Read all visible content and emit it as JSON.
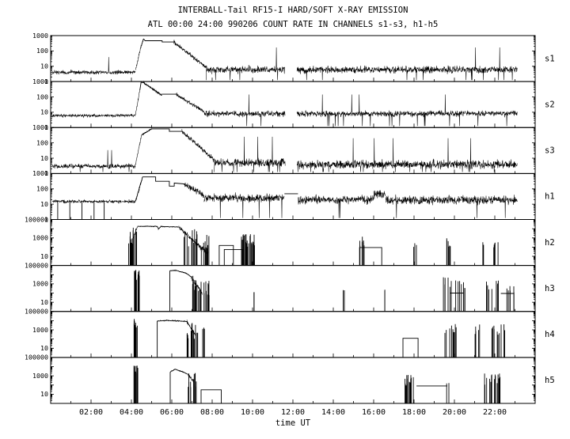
{
  "title": "INTERBALL-Tail RF15-I HARD/SOFT X-RAY EMISSION",
  "subtitle": "ATL 00:00 24:00 990206  COUNT RATE IN CHANNELS s1-s3, h1-h5",
  "xlabel": "time UT",
  "chart_data": {
    "type": "line",
    "title": "INTERBALL-Tail RF15-I HARD/SOFT X-RAY EMISSION",
    "subtitle": "ATL 00:00 24:00 990206  COUNT RATE IN CHANNELS s1-s3, h1-h5",
    "xlabel": "time UT",
    "x_range": [
      0,
      24
    ],
    "x_ticks": [
      {
        "hour": 2,
        "label": "02:00"
      },
      {
        "hour": 4,
        "label": "04:00"
      },
      {
        "hour": 6,
        "label": "06:00"
      },
      {
        "hour": 8,
        "label": "08:00"
      },
      {
        "hour": 10,
        "label": "10:00"
      },
      {
        "hour": 12,
        "label": "12:00"
      },
      {
        "hour": 14,
        "label": "14:00"
      },
      {
        "hour": 16,
        "label": "16:00"
      },
      {
        "hour": 18,
        "label": "18:00"
      },
      {
        "hour": 20,
        "label": "20:00"
      },
      {
        "hour": 22,
        "label": "22:00"
      }
    ],
    "panels": [
      {
        "label": "s1",
        "ymin": 1,
        "ymax": 1000,
        "ytick_labels": [
          "1000",
          "100",
          "10",
          "1"
        ],
        "segments": [
          {
            "type": "noise",
            "t0": 0.08,
            "t1": 4.2,
            "base": 4,
            "amp": 0.13,
            "dip_p": 0.004,
            "spike_p": 0.002
          },
          {
            "type": "ramp",
            "t0": 4.2,
            "t1": 4.45,
            "v0": 5,
            "v1": 150,
            "amp": 0.1
          },
          {
            "type": "ramp",
            "t0": 4.45,
            "t1": 4.6,
            "v0": 150,
            "v1": 620,
            "amp": 0.04
          },
          {
            "type": "line",
            "points": [
              [
                4.6,
                620
              ],
              [
                4.68,
                460
              ],
              [
                5.52,
                460
              ],
              [
                5.52,
                380
              ],
              [
                6.1,
                380
              ]
            ]
          },
          {
            "type": "ramp",
            "t0": 6.1,
            "t1": 7.7,
            "v0": 380,
            "v1": 8,
            "amp": 0.12
          },
          {
            "type": "noise",
            "t0": 7.7,
            "t1": 11.62,
            "base": 6,
            "amp": 0.22,
            "dip_p": 0.015,
            "spike_p": 0.004
          },
          {
            "type": "noise",
            "t0": 12.2,
            "t1": 23.12,
            "base": 6,
            "amp": 0.22,
            "dip_p": 0.018,
            "spike_p": 0.004
          }
        ]
      },
      {
        "label": "s2",
        "ymin": 1,
        "ymax": 1000,
        "ytick_labels": [
          "1000",
          "100",
          "10",
          "1"
        ],
        "segments": [
          {
            "type": "noise",
            "t0": 0.08,
            "t1": 4.2,
            "base": 6,
            "amp": 0.1,
            "dip_p": 0.003
          },
          {
            "type": "ramp",
            "t0": 4.2,
            "t1": 4.42,
            "v0": 7,
            "v1": 280,
            "amp": 0.08
          },
          {
            "type": "line",
            "points": [
              [
                4.42,
                280
              ],
              [
                4.48,
                900
              ],
              [
                4.6,
                850
              ]
            ]
          },
          {
            "type": "ramp",
            "t0": 4.6,
            "t1": 5.5,
            "v0": 850,
            "v1": 130,
            "amp": 0.05
          },
          {
            "type": "line",
            "points": [
              [
                5.5,
                150
              ],
              [
                6.2,
                150
              ]
            ]
          },
          {
            "type": "ramp",
            "t0": 6.2,
            "t1": 7.6,
            "v0": 150,
            "v1": 11,
            "amp": 0.12
          },
          {
            "type": "noise",
            "t0": 7.6,
            "t1": 11.62,
            "base": 8,
            "amp": 0.18,
            "dip_p": 0.012,
            "spike_p": 0.003
          },
          {
            "type": "noise",
            "t0": 12.2,
            "t1": 23.12,
            "base": 8,
            "amp": 0.18,
            "dip_p": 0.015,
            "spike_p": 0.003
          }
        ]
      },
      {
        "label": "s3",
        "ymin": 1,
        "ymax": 1000,
        "ytick_labels": [
          "1000",
          "100",
          "10",
          "1"
        ],
        "segments": [
          {
            "type": "noise",
            "t0": 0.08,
            "t1": 4.2,
            "base": 3,
            "amp": 0.14,
            "dip_p": 0.004,
            "spike_p": 0.002
          },
          {
            "type": "ramp",
            "t0": 4.2,
            "t1": 4.5,
            "v0": 3.5,
            "v1": 320,
            "amp": 0.09
          },
          {
            "type": "ramp",
            "t0": 4.5,
            "t1": 5.0,
            "v0": 320,
            "v1": 820,
            "amp": 0.03
          },
          {
            "type": "line",
            "points": [
              [
                5.0,
                820
              ],
              [
                5.88,
                820
              ],
              [
                5.88,
                560
              ],
              [
                6.5,
                560
              ]
            ]
          },
          {
            "type": "ramp",
            "t0": 6.5,
            "t1": 8.1,
            "v0": 560,
            "v1": 8,
            "amp": 0.15
          },
          {
            "type": "noise",
            "t0": 8.1,
            "t1": 11.62,
            "base": 5,
            "amp": 0.27,
            "dip_p": 0.02,
            "spike_p": 0.005
          },
          {
            "type": "noise",
            "t0": 12.2,
            "t1": 23.12,
            "base": 4,
            "amp": 0.27,
            "dip_p": 0.02,
            "spike_p": 0.005
          }
        ]
      },
      {
        "label": "h1",
        "ymin": 1,
        "ymax": 1000,
        "ytick_labels": [
          "1000",
          "100",
          "10",
          "1"
        ],
        "segments": [
          {
            "type": "noise",
            "t0": 0.08,
            "t1": 4.2,
            "base": 15,
            "amp": 0.1,
            "dip_p": 0.002
          },
          {
            "type": "vlines",
            "times": [
              0.35,
              0.95,
              1.55,
              2.15,
              2.65
            ],
            "v0": 1,
            "v1": 14
          },
          {
            "type": "ramp",
            "t0": 4.2,
            "t1": 4.55,
            "v0": 16,
            "v1": 550,
            "amp": 0.06
          },
          {
            "type": "line",
            "points": [
              [
                4.55,
                600
              ],
              [
                5.2,
                600
              ],
              [
                5.2,
                310
              ],
              [
                5.88,
                310
              ],
              [
                5.88,
                150
              ],
              [
                6.12,
                150
              ],
              [
                6.12,
                240
              ],
              [
                6.6,
                210
              ]
            ]
          },
          {
            "type": "ramp",
            "t0": 6.6,
            "t1": 7.6,
            "v0": 210,
            "v1": 40,
            "amp": 0.18
          },
          {
            "type": "noise",
            "t0": 7.6,
            "t1": 11.58,
            "base": 25,
            "amp": 0.26,
            "dip_p": 0.006
          },
          {
            "type": "line",
            "points": [
              [
                11.58,
                48
              ],
              [
                12.25,
                48
              ]
            ]
          },
          {
            "type": "noise",
            "t0": 12.25,
            "t1": 16.0,
            "base": 20,
            "amp": 0.26,
            "dip_p": 0.006
          },
          {
            "type": "noise",
            "t0": 16.0,
            "t1": 16.6,
            "base": 45,
            "amp": 0.3
          },
          {
            "type": "noise",
            "t0": 16.6,
            "t1": 23.12,
            "base": 18,
            "amp": 0.27,
            "dip_p": 0.007
          }
        ]
      },
      {
        "label": "h2",
        "ymin": 1,
        "ymax": 100000,
        "ytick_labels": [
          "100000",
          "1000",
          "10"
        ],
        "segments": [
          {
            "type": "spikes",
            "t0": 3.85,
            "t1": 4.08,
            "vmin": 200,
            "vmax": 6000,
            "n": 9
          },
          {
            "type": "spikes",
            "t0": 4.08,
            "t1": 4.3,
            "vmin": 2000,
            "vmax": 16000,
            "n": 7
          },
          {
            "type": "ramp",
            "t0": 4.08,
            "t1": 4.3,
            "v0": 800,
            "v1": 17000,
            "amp": 0.1
          },
          {
            "type": "line",
            "points": [
              [
                4.3,
                18000
              ],
              [
                5.28,
                18000
              ],
              [
                5.34,
                9000
              ],
              [
                5.46,
                17000
              ],
              [
                6.35,
                15000
              ]
            ],
            "amp": 0.04
          },
          {
            "type": "ramp",
            "t0": 6.35,
            "t1": 7.35,
            "v0": 15000,
            "v1": 120,
            "amp": 0.25
          },
          {
            "type": "spikes",
            "t0": 6.5,
            "t1": 7.85,
            "vmin": 40,
            "vmax": 9000,
            "n": 26
          },
          {
            "type": "ramp",
            "t0": 7.35,
            "t1": 7.8,
            "v0": 120,
            "v1": 25,
            "amp": 0.3
          },
          {
            "type": "step",
            "t0": 8.35,
            "t1": 9.05,
            "v": 150
          },
          {
            "type": "step",
            "t0": 8.6,
            "t1": 9.5,
            "v": 55
          },
          {
            "type": "spikes",
            "t0": 9.45,
            "t1": 10.1,
            "vmin": 60,
            "vmax": 2500,
            "n": 30
          },
          {
            "type": "spikes",
            "t0": 15.25,
            "t1": 15.55,
            "vmin": 100,
            "vmax": 1500,
            "n": 8
          },
          {
            "type": "step",
            "t0": 15.3,
            "t1": 16.4,
            "v": 90
          },
          {
            "type": "spikes",
            "t0": 17.95,
            "t1": 18.12,
            "vmin": 80,
            "vmax": 420,
            "n": 3
          },
          {
            "type": "spikes",
            "t0": 19.55,
            "t1": 20.0,
            "vmin": 100,
            "vmax": 1200,
            "n": 6
          },
          {
            "type": "spikes",
            "t0": 21.35,
            "t1": 21.5,
            "vmin": 80,
            "vmax": 420,
            "n": 2
          },
          {
            "type": "spikes",
            "t0": 21.9,
            "t1": 22.35,
            "vmin": 80,
            "vmax": 520,
            "n": 5
          }
        ]
      },
      {
        "label": "h3",
        "ymin": 1,
        "ymax": 100000,
        "ytick_labels": [
          "100000",
          "1000",
          "10"
        ],
        "segments": [
          {
            "type": "spikes",
            "t0": 4.12,
            "t1": 4.4,
            "vmin": 2000,
            "vmax": 60000,
            "n": 14
          },
          {
            "type": "vlines",
            "times": [
              5.9
            ],
            "v0": 1,
            "v1": 26000
          },
          {
            "type": "line",
            "points": [
              [
                5.9,
                26000
              ],
              [
                6.2,
                30000
              ],
              [
                6.7,
                15000
              ],
              [
                6.95,
                6000
              ]
            ],
            "amp": 0.04
          },
          {
            "type": "ramp",
            "t0": 6.95,
            "t1": 7.5,
            "v0": 6000,
            "v1": 100,
            "amp": 0.22
          },
          {
            "type": "spikes",
            "t0": 6.95,
            "t1": 7.85,
            "vmin": 50,
            "vmax": 8000,
            "n": 22
          },
          {
            "type": "spikes",
            "t0": 10.0,
            "t1": 10.08,
            "vmin": 120,
            "vmax": 260,
            "n": 2
          },
          {
            "type": "spikes",
            "t0": 14.45,
            "t1": 14.55,
            "vmin": 80,
            "vmax": 220,
            "n": 2
          },
          {
            "type": "spikes",
            "t0": 16.5,
            "t1": 16.6,
            "vmin": 100,
            "vmax": 320,
            "n": 2
          },
          {
            "type": "spikes",
            "t0": 19.45,
            "t1": 20.55,
            "vmin": 200,
            "vmax": 12000,
            "n": 14
          },
          {
            "type": "hline",
            "t0": 19.8,
            "t1": 20.45,
            "v": 100
          },
          {
            "type": "spikes",
            "t0": 21.5,
            "t1": 22.3,
            "vmin": 150,
            "vmax": 3200,
            "n": 10
          },
          {
            "type": "hline",
            "t0": 22.3,
            "t1": 22.95,
            "v": 90
          },
          {
            "type": "spikes",
            "t0": 22.55,
            "t1": 23.0,
            "vmin": 100,
            "vmax": 1600,
            "n": 6
          }
        ]
      },
      {
        "label": "h4",
        "ymin": 1,
        "ymax": 100000,
        "ytick_labels": [
          "100000",
          "1000",
          "10"
        ],
        "segments": [
          {
            "type": "spikes",
            "t0": 4.12,
            "t1": 4.3,
            "vmin": 1500,
            "vmax": 16000,
            "n": 10
          },
          {
            "type": "vlines",
            "times": [
              5.28
            ],
            "v0": 1,
            "v1": 9000
          },
          {
            "type": "line",
            "points": [
              [
                5.28,
                9000
              ],
              [
                5.7,
                10500
              ],
              [
                6.3,
                9500
              ],
              [
                6.75,
                8000
              ]
            ],
            "amp": 0.04
          },
          {
            "type": "ramp",
            "t0": 6.75,
            "t1": 7.15,
            "v0": 8000,
            "v1": 300,
            "amp": 0.2
          },
          {
            "type": "spikes",
            "t0": 6.75,
            "t1": 7.35,
            "vmin": 100,
            "vmax": 6500,
            "n": 14
          },
          {
            "type": "spikes",
            "t0": 7.5,
            "t1": 7.62,
            "vmin": 500,
            "vmax": 2600,
            "n": 3
          },
          {
            "type": "step",
            "t0": 17.45,
            "t1": 18.2,
            "v": 120
          },
          {
            "type": "spikes",
            "t0": 19.5,
            "t1": 20.1,
            "vmin": 300,
            "vmax": 6000,
            "n": 9
          },
          {
            "type": "spikes",
            "t0": 21.0,
            "t1": 21.35,
            "vmin": 200,
            "vmax": 4200,
            "n": 6
          },
          {
            "type": "spikes",
            "t0": 21.85,
            "t1": 22.5,
            "vmin": 300,
            "vmax": 6400,
            "n": 10
          }
        ]
      },
      {
        "label": "h5",
        "ymin": 1,
        "ymax": 100000,
        "ytick_labels": [
          "100000",
          "1000",
          "10"
        ],
        "segments": [
          {
            "type": "spikes",
            "t0": 4.12,
            "t1": 4.32,
            "vmin": 1000,
            "vmax": 32000,
            "n": 10
          },
          {
            "type": "vlines",
            "times": [
              5.92
            ],
            "v0": 1,
            "v1": 2600
          },
          {
            "type": "line",
            "points": [
              [
                5.92,
                2600
              ],
              [
                6.15,
                5200
              ],
              [
                6.55,
                2600
              ],
              [
                6.8,
                1500
              ]
            ],
            "amp": 0.04
          },
          {
            "type": "spikes",
            "t0": 6.8,
            "t1": 7.3,
            "vmin": 50,
            "vmax": 2100,
            "n": 12
          },
          {
            "type": "ramp",
            "t0": 6.8,
            "t1": 7.1,
            "v0": 1500,
            "v1": 200,
            "amp": 0.15
          },
          {
            "type": "step",
            "t0": 7.45,
            "t1": 8.45,
            "v": 30
          },
          {
            "type": "spikes",
            "t0": 17.5,
            "t1": 18.12,
            "vmin": 60,
            "vmax": 1300,
            "n": 14
          },
          {
            "type": "hline",
            "t0": 18.12,
            "t1": 19.65,
            "v": 80
          },
          {
            "type": "spikes",
            "t0": 19.6,
            "t1": 19.75,
            "vmin": 60,
            "vmax": 220,
            "n": 3
          },
          {
            "type": "spikes",
            "t0": 21.4,
            "t1": 22.4,
            "vmin": 100,
            "vmax": 2600,
            "n": 16
          }
        ]
      }
    ]
  }
}
